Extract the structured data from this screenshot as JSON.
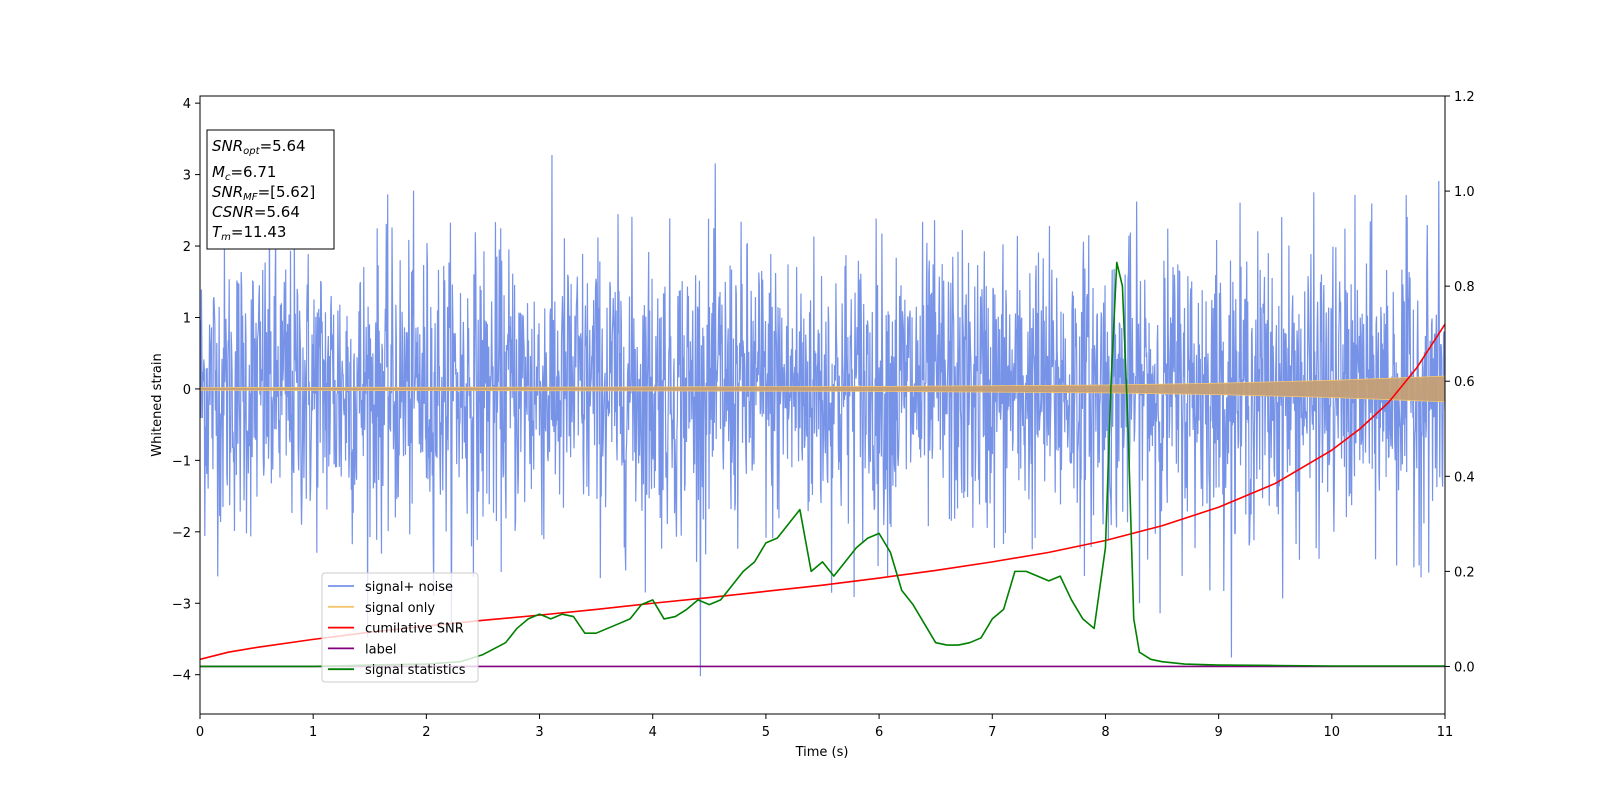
{
  "chart_data": {
    "type": "line",
    "title": "",
    "xlabel": "Time (s)",
    "ylabel_left": "Whitened strain",
    "ylabel_right": "",
    "xlim": [
      0,
      11
    ],
    "ylim_left": [
      -4.55,
      4.1
    ],
    "ylim_right": [
      -0.1,
      1.2
    ],
    "xticks": [
      0,
      1,
      2,
      3,
      4,
      5,
      6,
      7,
      8,
      9,
      10,
      11
    ],
    "yticks_left": [
      -4,
      -3,
      -2,
      -1,
      0,
      1,
      2,
      3,
      4
    ],
    "yticks_right": [
      0.0,
      0.2,
      0.4,
      0.6,
      0.8,
      1.0,
      1.2
    ],
    "ytick_labels_left": [
      "−4",
      "−3",
      "−2",
      "−1",
      "0",
      "1",
      "2",
      "3",
      "4"
    ],
    "ytick_labels_right": [
      "0.0",
      "0.2",
      "0.4",
      "0.6",
      "0.8",
      "1.0",
      "1.2"
    ],
    "grid": false,
    "legend_placement": "lower-left",
    "annotation": {
      "lines": [
        {
          "symbol": "SNR",
          "sub": "opt",
          "value": "=5.64"
        },
        {
          "symbol": "M",
          "sub": "c",
          "value": "=6.71"
        },
        {
          "symbol": "SNR",
          "sub": "MF",
          "value": "=[5.62]"
        },
        {
          "symbol": "CSNR",
          "sub": "",
          "value": "=5.64"
        },
        {
          "symbol": "T",
          "sub": "m",
          "value": "=11.43"
        }
      ]
    },
    "series": [
      {
        "name": "signal+ noise",
        "color": "#7793e8",
        "axis": "left",
        "kind": "noise",
        "description_values": {
          "sigma": 1.0,
          "t_start": 0,
          "t_end": 11,
          "samples": 2600
        }
      },
      {
        "name": "signal only",
        "color": "#f5c56f",
        "fill_color": "#c59f76",
        "axis": "left",
        "kind": "chirp_envelope",
        "envelope": {
          "x": [
            0,
            3,
            6,
            8,
            9,
            10,
            11
          ],
          "amp": [
            0.02,
            0.025,
            0.035,
            0.055,
            0.08,
            0.12,
            0.18
          ]
        }
      },
      {
        "name": "cumilative SNR",
        "color": "#ff0000",
        "axis": "right",
        "x": [
          0,
          0.25,
          0.5,
          1,
          1.5,
          2,
          2.5,
          3,
          3.5,
          4,
          4.5,
          5,
          5.5,
          6,
          6.5,
          7,
          7.5,
          8,
          8.5,
          9,
          9.5,
          10,
          10.25,
          10.5,
          10.75,
          11
        ],
        "y": [
          0.015,
          0.03,
          0.04,
          0.057,
          0.072,
          0.085,
          0.097,
          0.108,
          0.12,
          0.133,
          0.145,
          0.158,
          0.171,
          0.186,
          0.202,
          0.22,
          0.24,
          0.265,
          0.296,
          0.335,
          0.385,
          0.455,
          0.5,
          0.555,
          0.628,
          0.72
        ]
      },
      {
        "name": "label",
        "color": "#800080",
        "axis": "right",
        "x": [
          0,
          11
        ],
        "y": [
          0.0,
          0.0
        ]
      },
      {
        "name": "signal statistics",
        "color": "#008000",
        "axis": "right",
        "x": [
          0,
          1,
          1.5,
          2,
          2.3,
          2.5,
          2.7,
          2.8,
          2.9,
          3.0,
          3.1,
          3.2,
          3.3,
          3.4,
          3.5,
          3.6,
          3.7,
          3.8,
          3.9,
          4.0,
          4.1,
          4.2,
          4.3,
          4.4,
          4.5,
          4.6,
          4.7,
          4.8,
          4.9,
          5.0,
          5.1,
          5.2,
          5.3,
          5.4,
          5.5,
          5.6,
          5.7,
          5.8,
          5.9,
          6.0,
          6.1,
          6.2,
          6.3,
          6.4,
          6.5,
          6.6,
          6.7,
          6.8,
          6.9,
          7.0,
          7.1,
          7.2,
          7.3,
          7.4,
          7.5,
          7.6,
          7.7,
          7.8,
          7.9,
          8.0,
          8.05,
          8.1,
          8.15,
          8.2,
          8.25,
          8.3,
          8.4,
          8.5,
          8.7,
          9.0,
          9.5,
          10,
          11
        ],
        "y": [
          0.0,
          0.0,
          0.003,
          0.005,
          0.01,
          0.025,
          0.05,
          0.08,
          0.1,
          0.11,
          0.1,
          0.11,
          0.105,
          0.07,
          0.07,
          0.08,
          0.09,
          0.1,
          0.13,
          0.14,
          0.1,
          0.105,
          0.12,
          0.14,
          0.13,
          0.14,
          0.17,
          0.2,
          0.22,
          0.26,
          0.27,
          0.3,
          0.33,
          0.2,
          0.22,
          0.19,
          0.22,
          0.25,
          0.27,
          0.28,
          0.24,
          0.16,
          0.13,
          0.09,
          0.05,
          0.045,
          0.045,
          0.05,
          0.06,
          0.1,
          0.12,
          0.2,
          0.2,
          0.19,
          0.18,
          0.19,
          0.14,
          0.1,
          0.08,
          0.25,
          0.6,
          0.85,
          0.8,
          0.5,
          0.1,
          0.03,
          0.015,
          0.01,
          0.005,
          0.003,
          0.002,
          0.001,
          0.001
        ]
      }
    ]
  }
}
